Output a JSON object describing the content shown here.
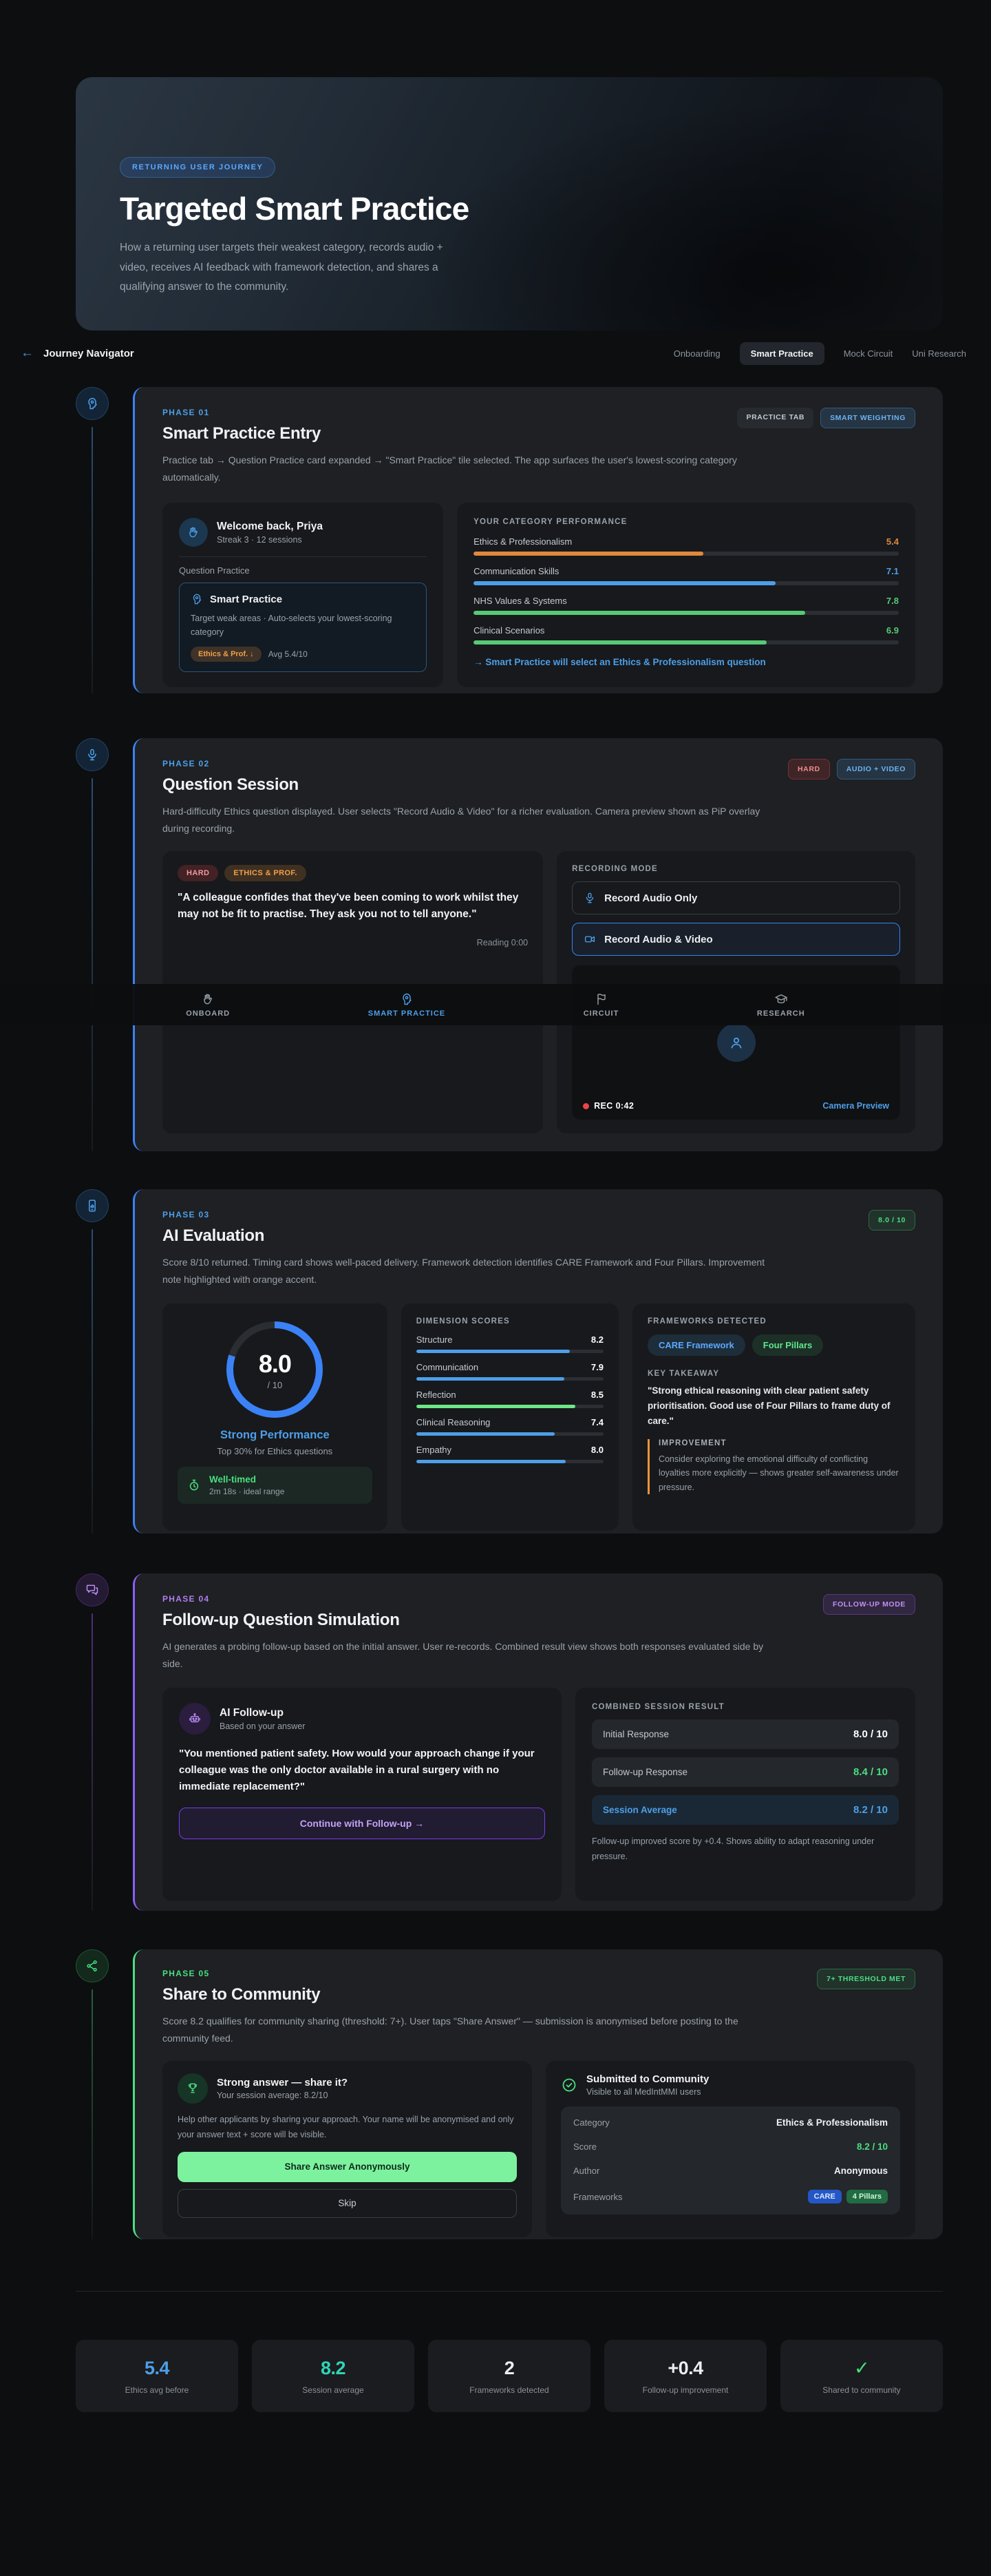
{
  "hero": {
    "badge": "RETURNING USER JOURNEY",
    "title": "Targeted Smart Practice",
    "description": "How a returning user targets their weakest category, records audio + video, receives AI feedback with framework detection, and shares a qualifying answer to the community."
  },
  "nav": {
    "back_arrow": "←",
    "title": "Journey Navigator",
    "items": [
      {
        "label": "Onboarding",
        "active": false
      },
      {
        "label": "Smart Practice",
        "active": true
      },
      {
        "label": "Mock Circuit",
        "active": false
      },
      {
        "label": "Uni Research",
        "active": false
      }
    ]
  },
  "tabbar": {
    "items": [
      {
        "label": "ONBOARD",
        "active": false
      },
      {
        "label": "SMART PRACTICE",
        "active": true
      },
      {
        "label": "CIRCUIT",
        "active": false
      },
      {
        "label": "RESEARCH",
        "active": false
      }
    ]
  },
  "phase1": {
    "label": "PHASE 01",
    "title": "Smart Practice Entry",
    "description": "Practice tab → Question Practice card expanded → \"Smart Practice\" tile selected. The app surfaces the user's lowest-scoring category automatically.",
    "tags": [
      "PRACTICE TAB",
      "SMART WEIGHTING"
    ],
    "welcome": {
      "title": "Welcome back, Priya",
      "subtitle": "Streak 3 · 12 sessions",
      "section_label": "Question Practice",
      "tile": {
        "title": "Smart Practice",
        "description": "Target weak areas · Auto-selects your lowest-scoring category",
        "chip": "Ethics & Prof. ↓",
        "avg": "Avg 5.4/10"
      }
    },
    "performance": {
      "heading": "YOUR CATEGORY PERFORMANCE",
      "categories": [
        {
          "label": "Ethics & Professionalism",
          "score": "5.4",
          "color": "#e0883c"
        },
        {
          "label": "Communication Skills",
          "score": "7.1",
          "color": "#4d9fe8"
        },
        {
          "label": "NHS Values & Systems",
          "score": "7.8",
          "color": "#57c975"
        },
        {
          "label": "Clinical Scenarios",
          "score": "6.9",
          "color": "#57c975"
        }
      ],
      "footnote": "→ Smart Practice will select an Ethics & Professionalism question"
    }
  },
  "phase2": {
    "label": "PHASE 02",
    "title": "Question Session",
    "description": "Hard-difficulty Ethics question displayed. User selects \"Record Audio & Video\" for a richer evaluation. Camera preview shown as PiP overlay during recording.",
    "tags": [
      "HARD",
      "AUDIO + VIDEO"
    ],
    "question": {
      "pills": [
        "HARD",
        "ETHICS & PROF."
      ],
      "text": "\"A colleague confides that they've been coming to work whilst they may not be fit to practise. They ask you not to tell anyone.\"",
      "timer": "Reading 0:00"
    },
    "recording": {
      "heading": "RECORDING MODE",
      "options": [
        {
          "label": "Record Audio Only",
          "selected": false
        },
        {
          "label": "Record Audio & Video",
          "selected": true
        }
      ],
      "rec_label": "REC 0:42",
      "preview_label": "Camera Preview"
    }
  },
  "phase3": {
    "label": "PHASE 03",
    "title": "AI Evaluation",
    "description": "Score 8/10 returned. Timing card shows well-paced delivery. Framework detection identifies CARE Framework and Four Pillars. Improvement note highlighted with orange accent.",
    "tag": "8.0 / 10",
    "score": {
      "value": "8.0",
      "denominator": "/ 10",
      "ring_percent": 80,
      "headline": "Strong Performance",
      "subline": "Top 30% for Ethics questions",
      "timing_title": "Well-timed",
      "timing_detail": "2m 18s · ideal range"
    },
    "dimensions": {
      "heading": "DIMENSION SCORES",
      "rows": [
        {
          "label": "Structure",
          "score": "8.2",
          "color": "#4d9fe8"
        },
        {
          "label": "Communication",
          "score": "7.9",
          "color": "#4d9fe8"
        },
        {
          "label": "Reflection",
          "score": "8.5",
          "color": "#6ee787"
        },
        {
          "label": "Clinical Reasoning",
          "score": "7.4",
          "color": "#4d9fe8"
        },
        {
          "label": "Empathy",
          "score": "8.0",
          "color": "#4d9fe8"
        }
      ]
    },
    "frameworks": {
      "heading": "FRAMEWORKS DETECTED",
      "pills": [
        "CARE Framework",
        "Four Pillars"
      ],
      "takeaway_heading": "KEY TAKEAWAY",
      "takeaway": "\"Strong ethical reasoning with clear patient safety prioritisation. Good use of Four Pillars to frame duty of care.\"",
      "improvement_heading": "IMPROVEMENT",
      "improvement": "Consider exploring the emotional difficulty of conflicting loyalties more explicitly — shows greater self-awareness under pressure."
    }
  },
  "phase4": {
    "label": "PHASE 04",
    "title": "Follow-up Question Simulation",
    "description": "AI generates a probing follow-up based on the initial answer. User re-records. Combined result view shows both responses evaluated side by side.",
    "tag": "FOLLOW-UP MODE",
    "followup": {
      "title": "AI Follow-up",
      "subtitle": "Based on your answer",
      "question": "\"You mentioned patient safety. How would your approach change if your colleague was the only doctor available in a rural surgery with no immediate replacement?\"",
      "button": "Continue with Follow-up →"
    },
    "combined": {
      "heading": "COMBINED SESSION RESULT",
      "rows": [
        {
          "label": "Initial Response",
          "value": "8.0 / 10"
        },
        {
          "label": "Follow-up Response",
          "value": "8.4 / 10"
        },
        {
          "label": "Session Average",
          "value": "8.2 / 10"
        }
      ],
      "note": "Follow-up improved score by +0.4. Shows ability to adapt reasoning under pressure."
    }
  },
  "phase5": {
    "label": "PHASE 05",
    "title": "Share to Community",
    "description": "Score 8.2 qualifies for community sharing (threshold: 7+). User taps \"Share Answer\" — submission is anonymised before posting to the community feed.",
    "tag": "7+ THRESHOLD MET",
    "share": {
      "title": "Strong answer — share it?",
      "subtitle": "Your session average: 8.2/10",
      "body": "Help other applicants by sharing your approach. Your name will be anonymised and only your answer text + score will be visible.",
      "primary_button": "Share Answer Anonymously",
      "secondary_button": "Skip"
    },
    "submitted": {
      "title": "Submitted to Community",
      "subtitle": "Visible to all MedIntMMI users",
      "rows": [
        {
          "label": "Category",
          "value": "Ethics & Professionalism"
        },
        {
          "label": "Score",
          "value": "8.2 / 10"
        },
        {
          "label": "Author",
          "value": "Anonymous"
        }
      ],
      "frameworks_label": "Frameworks",
      "framework_pills": [
        "CARE",
        "4 Pillars"
      ]
    }
  },
  "stats": [
    {
      "value": "5.4",
      "label": "Ethics avg before",
      "color": "#4d9fe8"
    },
    {
      "value": "8.2",
      "label": "Session average",
      "color": "#2fd4b5"
    },
    {
      "value": "2",
      "label": "Frameworks detected",
      "color": "#eceef0"
    },
    {
      "value": "+0.4",
      "label": "Follow-up improvement",
      "color": "#eceef0"
    },
    {
      "value": "✓",
      "label": "Shared to community",
      "color": "#4ade80"
    }
  ]
}
